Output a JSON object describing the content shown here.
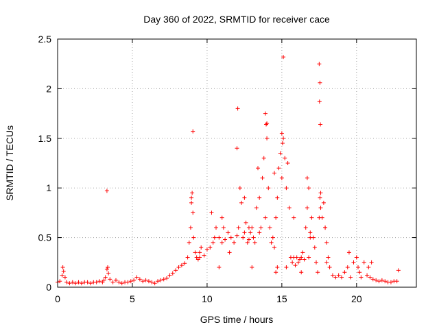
{
  "chart_data": {
    "type": "scatter",
    "title": "Day 360 of 2022, SRMTID for receiver cace",
    "xlabel": "GPS time / hours",
    "ylabel": "SRMTID / TECUs",
    "xlim": [
      0,
      24
    ],
    "ylim": [
      0,
      2.5
    ],
    "xticks": [
      0,
      5,
      10,
      15,
      20
    ],
    "yticks": [
      0,
      0.5,
      1,
      1.5,
      2,
      2.5
    ],
    "grid": true,
    "marker": "+",
    "color": "#ff0000",
    "series": [
      {
        "name": "SRMTID",
        "x": [
          0.0,
          0.15,
          0.3,
          0.4,
          0.5,
          0.6,
          0.8,
          1.0,
          1.2,
          1.4,
          1.6,
          1.8,
          2.0,
          2.2,
          2.4,
          2.6,
          2.8,
          3.0,
          3.1,
          3.2,
          3.3,
          3.35,
          3.4,
          3.5,
          3.7,
          3.9,
          4.1,
          4.3,
          4.5,
          4.7,
          4.9,
          5.1,
          5.3,
          5.5,
          5.7,
          5.9,
          6.1,
          6.3,
          6.5,
          6.7,
          6.9,
          7.1,
          7.3,
          7.5,
          7.7,
          7.9,
          8.1,
          8.3,
          8.5,
          8.7,
          8.8,
          8.9,
          8.95,
          9.0,
          9.05,
          9.1,
          9.2,
          9.3,
          9.4,
          9.5,
          9.6,
          9.8,
          10.0,
          10.2,
          10.4,
          10.5,
          10.6,
          10.8,
          11.0,
          11.1,
          11.2,
          11.4,
          11.6,
          11.8,
          12.0,
          12.1,
          12.2,
          12.3,
          12.4,
          12.5,
          12.6,
          12.7,
          12.8,
          12.9,
          13.0,
          13.1,
          13.2,
          13.3,
          13.4,
          13.5,
          13.6,
          13.7,
          13.8,
          13.9,
          14.0,
          14.1,
          14.2,
          14.3,
          14.4,
          14.5,
          14.6,
          14.7,
          14.8,
          14.9,
          15.0,
          15.1,
          15.2,
          15.3,
          15.4,
          15.5,
          15.6,
          15.7,
          15.8,
          15.9,
          16.0,
          16.1,
          16.2,
          16.3,
          16.4,
          16.5,
          16.6,
          16.7,
          16.8,
          16.9,
          17.0,
          17.1,
          17.2,
          17.3,
          17.4,
          17.5,
          17.55,
          17.6,
          17.7,
          17.8,
          17.9,
          18.0,
          18.1,
          18.2,
          18.4,
          18.6,
          18.8,
          19.0,
          19.2,
          19.4,
          19.6,
          19.8,
          20.0,
          20.1,
          20.2,
          20.3,
          20.5,
          20.7,
          20.9,
          21.1,
          21.3,
          21.5,
          21.7,
          21.9,
          22.1,
          22.3,
          22.5,
          22.7,
          22.8,
          0.35,
          3.3,
          8.95,
          9.05,
          12.0,
          12.05,
          13.9,
          14.0,
          13.95,
          15.0,
          15.05,
          15.1,
          17.5,
          17.55,
          17.52,
          17.58,
          17.6,
          12.5,
          13.5,
          14.5,
          16.7,
          16.9,
          10.3,
          11.0,
          11.5,
          13.0,
          14.6,
          14.7,
          15.3,
          16.3,
          16.8,
          18.0,
          19.5,
          20.0,
          20.8,
          21.0,
          9.5,
          10.8,
          12.8,
          15.8,
          17.9
        ],
        "y": [
          0.05,
          0.06,
          0.12,
          0.16,
          0.1,
          0.05,
          0.04,
          0.05,
          0.04,
          0.05,
          0.04,
          0.05,
          0.05,
          0.04,
          0.05,
          0.05,
          0.06,
          0.05,
          0.07,
          0.1,
          0.18,
          0.2,
          0.14,
          0.08,
          0.05,
          0.07,
          0.05,
          0.04,
          0.05,
          0.05,
          0.06,
          0.07,
          0.1,
          0.08,
          0.06,
          0.07,
          0.06,
          0.05,
          0.04,
          0.06,
          0.07,
          0.08,
          0.09,
          0.12,
          0.14,
          0.17,
          0.2,
          0.22,
          0.24,
          0.3,
          0.45,
          0.6,
          0.85,
          0.95,
          0.75,
          0.5,
          0.35,
          0.3,
          0.28,
          0.35,
          0.4,
          0.32,
          0.38,
          0.4,
          0.45,
          0.5,
          0.6,
          0.5,
          0.45,
          0.6,
          0.48,
          0.55,
          0.5,
          0.45,
          0.52,
          0.6,
          1.0,
          0.85,
          0.5,
          0.55,
          0.65,
          0.45,
          0.48,
          0.55,
          0.6,
          0.5,
          0.45,
          0.8,
          1.2,
          0.55,
          0.6,
          1.1,
          1.3,
          0.7,
          1.5,
          1.0,
          0.6,
          0.45,
          0.5,
          0.4,
          0.7,
          0.9,
          1.2,
          1.35,
          1.1,
          1.5,
          1.3,
          1.0,
          1.25,
          0.8,
          0.3,
          0.25,
          0.3,
          0.22,
          0.3,
          0.25,
          0.28,
          0.3,
          0.35,
          0.28,
          0.6,
          0.8,
          1.0,
          0.5,
          0.7,
          0.5,
          0.4,
          0.25,
          0.15,
          0.7,
          0.9,
          0.8,
          0.7,
          0.85,
          0.6,
          0.45,
          0.3,
          0.2,
          0.12,
          0.1,
          0.12,
          0.1,
          0.15,
          0.2,
          0.1,
          0.25,
          0.3,
          0.2,
          0.15,
          0.1,
          0.25,
          0.12,
          0.1,
          0.08,
          0.07,
          0.06,
          0.07,
          0.06,
          0.05,
          0.05,
          0.06,
          0.06,
          0.17,
          0.2,
          0.97,
          0.9,
          1.57,
          1.4,
          1.8,
          1.75,
          1.65,
          1.64,
          1.55,
          1.45,
          2.32,
          2.25,
          2.06,
          1.87,
          1.64,
          0.95,
          0.9,
          0.9,
          1.15,
          1.1,
          0.55,
          0.75,
          0.7,
          0.35,
          0.2,
          0.15,
          0.2,
          0.2,
          0.15,
          0.3,
          0.25,
          0.35,
          0.3,
          0.2,
          0.25,
          0.3,
          0.2,
          0.6,
          0.7,
          0.6
        ]
      }
    ]
  }
}
